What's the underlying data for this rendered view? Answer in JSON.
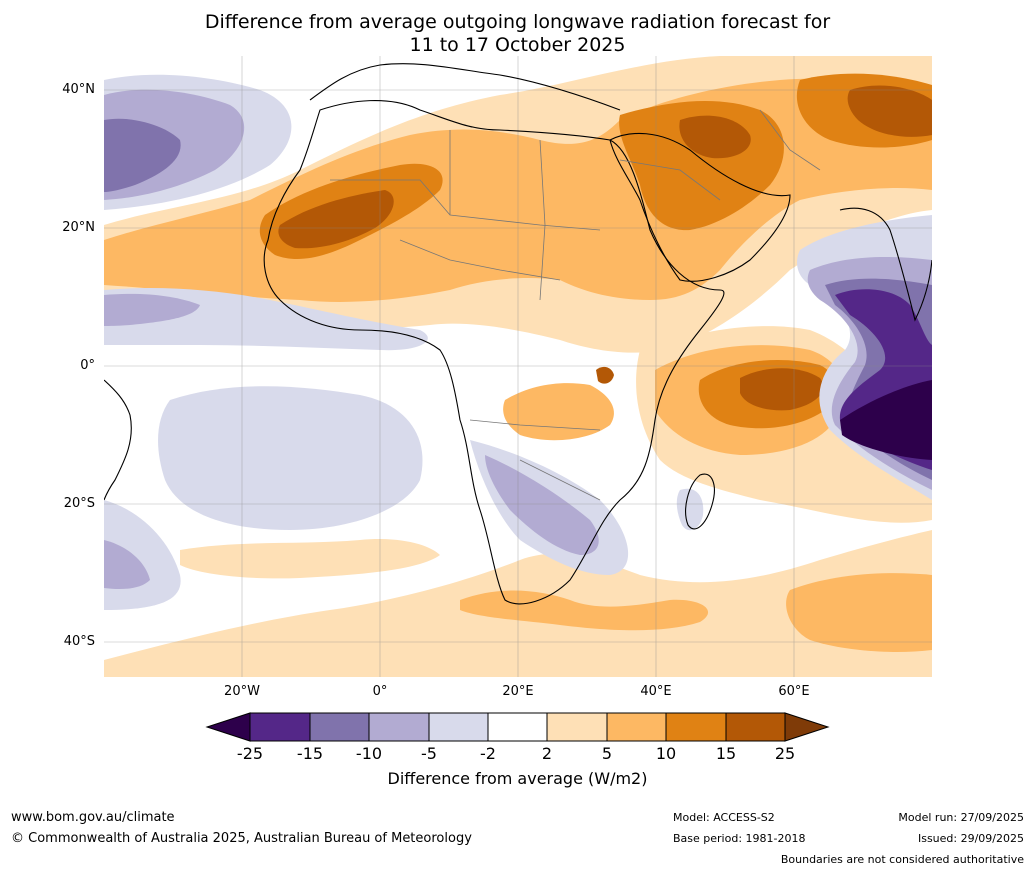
{
  "title": {
    "line1": "Difference from average outgoing longwave radiation forecast for",
    "line2": "11 to 17 October 2025"
  },
  "map": {
    "lat_labels": [
      "40°N",
      "20°N",
      "0°",
      "20°S",
      "40°S"
    ],
    "lon_labels": [
      "20°W",
      "0°",
      "20°E",
      "40°E",
      "60°E"
    ],
    "lat_range": [
      -45,
      45
    ],
    "lon_range": [
      -40,
      80
    ]
  },
  "colorbar": {
    "ticks": [
      "-25",
      "-15",
      "-10",
      "-5",
      "-2",
      "2",
      "5",
      "10",
      "15",
      "25"
    ],
    "colors": [
      "#2d004b",
      "#542788",
      "#8073ac",
      "#b2abd2",
      "#d8daeb",
      "#ffffff",
      "#fee0b6",
      "#fdb863",
      "#e08214",
      "#b35806",
      "#7f3b08"
    ],
    "label": "Difference from average (W/m2)"
  },
  "footer": {
    "website": "www.bom.gov.au/climate",
    "copyright": "© Commonwealth of Australia 2025, Australian Bureau of Meteorology",
    "model": "Model: ACCESS-S2",
    "base_period": "Base period: 1981-2018",
    "model_run": "Model run: 27/09/2025",
    "issued": "Issued: 29/09/2025",
    "disclaimer": "Boundaries are not considered authoritative"
  }
}
